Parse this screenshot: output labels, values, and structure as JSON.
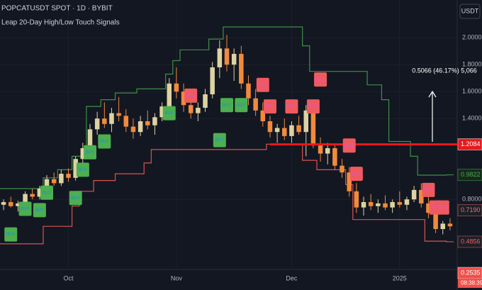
{
  "chart_data": {
    "type": "candlestick",
    "title": "POPCATUSDT SPOT · 1D · BYBIT",
    "subtitle": "Leap 20-Day High/Low Touch Signals",
    "currency": "USDT",
    "categories": [
      null,
      null,
      null,
      null,
      null,
      null,
      null,
      null,
      null,
      "Oct",
      null,
      null,
      null,
      null,
      null,
      null,
      null,
      null,
      null,
      null,
      null,
      null,
      null,
      null,
      "Nov",
      null,
      null,
      null,
      null,
      null,
      null,
      null,
      null,
      null,
      null,
      null,
      null,
      null,
      null,
      null,
      "Dec",
      null,
      null,
      null,
      null,
      null,
      null,
      null,
      null,
      null,
      null,
      null,
      null,
      null,
      null,
      "2025",
      null,
      null,
      null,
      null,
      null,
      null,
      null
    ],
    "ohlc": [
      [
        0.76,
        0.8,
        0.72,
        0.78
      ],
      [
        0.78,
        0.82,
        0.74,
        0.75
      ],
      [
        0.75,
        0.79,
        0.71,
        0.77
      ],
      [
        0.77,
        0.86,
        0.75,
        0.84
      ],
      [
        0.84,
        0.88,
        0.8,
        0.82
      ],
      [
        0.82,
        0.9,
        0.8,
        0.88
      ],
      [
        0.88,
        0.98,
        0.85,
        0.95
      ],
      [
        0.95,
        1.0,
        0.9,
        0.92
      ],
      [
        0.92,
        1.02,
        0.9,
        0.99
      ],
      [
        0.99,
        1.03,
        0.93,
        0.96
      ],
      [
        0.96,
        1.12,
        0.94,
        1.1
      ],
      [
        1.1,
        1.22,
        1.05,
        1.18
      ],
      [
        1.18,
        1.36,
        1.15,
        1.32
      ],
      [
        1.32,
        1.45,
        1.28,
        1.4
      ],
      [
        1.4,
        1.52,
        1.33,
        1.36
      ],
      [
        1.36,
        1.48,
        1.3,
        1.44
      ],
      [
        1.44,
        1.56,
        1.38,
        1.42
      ],
      [
        1.42,
        1.47,
        1.3,
        1.34
      ],
      [
        1.34,
        1.4,
        1.25,
        1.3
      ],
      [
        1.3,
        1.42,
        1.27,
        1.38
      ],
      [
        1.38,
        1.46,
        1.32,
        1.35
      ],
      [
        1.35,
        1.44,
        1.28,
        1.41
      ],
      [
        1.41,
        1.52,
        1.38,
        1.49
      ],
      [
        1.49,
        1.7,
        1.46,
        1.66
      ],
      [
        1.66,
        1.78,
        1.55,
        1.6
      ],
      [
        1.6,
        1.66,
        1.45,
        1.5
      ],
      [
        1.5,
        1.58,
        1.4,
        1.44
      ],
      [
        1.44,
        1.52,
        1.38,
        1.48
      ],
      [
        1.48,
        1.62,
        1.45,
        1.58
      ],
      [
        1.58,
        1.82,
        1.55,
        1.78
      ],
      [
        1.78,
        1.98,
        1.7,
        1.92
      ],
      [
        1.92,
        2.02,
        1.75,
        1.8
      ],
      [
        1.8,
        1.92,
        1.68,
        1.88
      ],
      [
        1.88,
        1.94,
        1.62,
        1.66
      ],
      [
        1.66,
        1.72,
        1.5,
        1.55
      ],
      [
        1.55,
        1.62,
        1.42,
        1.46
      ],
      [
        1.46,
        1.52,
        1.34,
        1.38
      ],
      [
        1.38,
        1.42,
        1.26,
        1.3
      ],
      [
        1.3,
        1.36,
        1.22,
        1.33
      ],
      [
        1.33,
        1.4,
        1.24,
        1.27
      ],
      [
        1.27,
        1.38,
        1.22,
        1.35
      ],
      [
        1.35,
        1.42,
        1.28,
        1.3
      ],
      [
        1.3,
        1.5,
        1.12,
        1.46
      ],
      [
        1.46,
        1.5,
        1.18,
        1.2
      ],
      [
        1.2,
        1.26,
        1.08,
        1.14
      ],
      [
        1.14,
        1.22,
        1.06,
        1.18
      ],
      [
        1.18,
        1.2,
        1.02,
        1.05
      ],
      [
        1.05,
        1.1,
        0.96,
        1.0
      ],
      [
        1.0,
        1.04,
        0.82,
        0.86
      ],
      [
        0.86,
        0.92,
        0.7,
        0.74
      ],
      [
        0.74,
        0.82,
        0.68,
        0.78
      ],
      [
        0.78,
        0.84,
        0.72,
        0.75
      ],
      [
        0.75,
        0.8,
        0.7,
        0.77
      ],
      [
        0.77,
        0.83,
        0.72,
        0.74
      ],
      [
        0.74,
        0.8,
        0.7,
        0.78
      ],
      [
        0.78,
        0.86,
        0.74,
        0.76
      ],
      [
        0.76,
        0.82,
        0.72,
        0.8
      ],
      [
        0.8,
        0.9,
        0.78,
        0.87
      ],
      [
        0.87,
        0.92,
        0.74,
        0.77
      ],
      [
        0.77,
        0.82,
        0.66,
        0.7
      ],
      [
        0.7,
        0.74,
        0.55,
        0.58
      ],
      [
        0.58,
        0.64,
        0.54,
        0.62
      ],
      [
        0.62,
        0.66,
        0.57,
        0.6
      ]
    ],
    "up_color": "#ddd3a2",
    "down_color": "#f28a3c",
    "series": [
      {
        "color": "#3f8f45",
        "values": [
          0.88,
          0.88,
          0.88,
          0.88,
          0.88,
          0.88,
          0.96,
          0.96,
          1.02,
          1.02,
          1.12,
          1.12,
          1.49,
          1.49,
          1.54,
          1.54,
          1.59,
          1.59,
          1.59,
          1.62,
          1.62,
          1.62,
          1.62,
          1.73,
          1.83,
          1.91,
          1.91,
          1.91,
          1.91,
          1.99,
          1.99,
          2.08,
          2.08,
          2.08,
          2.08,
          2.08,
          2.08,
          2.08,
          2.08,
          2.08,
          2.08,
          2.08,
          1.94,
          1.75,
          1.75,
          1.75,
          1.75,
          1.75,
          1.75,
          1.75,
          1.75,
          1.65,
          1.65,
          1.54,
          1.23,
          1.23,
          1.23,
          1.12,
          0.98,
          0.98,
          0.98,
          0.98,
          0.9822
        ]
      },
      {
        "color": "#d9534f",
        "values": [
          0.47,
          0.47,
          0.47,
          0.47,
          0.47,
          0.47,
          0.6,
          0.6,
          0.6,
          0.6,
          0.75,
          0.86,
          0.86,
          0.94,
          0.94,
          0.94,
          0.99,
          0.99,
          0.99,
          0.99,
          1.07,
          1.17,
          1.17,
          1.17,
          1.17,
          1.17,
          1.17,
          1.17,
          1.17,
          1.17,
          1.17,
          1.17,
          1.17,
          1.17,
          1.17,
          1.17,
          1.17,
          1.21,
          1.21,
          1.21,
          1.21,
          1.21,
          1.09,
          1.09,
          1.02,
          1.02,
          1.02,
          1.02,
          0.91,
          0.65,
          0.65,
          0.65,
          0.65,
          0.65,
          0.65,
          0.65,
          0.65,
          0.65,
          0.65,
          0.49,
          0.49,
          0.49,
          0.4856
        ]
      }
    ],
    "signals": [
      {
        "label": "BUY",
        "x": 1,
        "y": 0.54
      },
      {
        "label": "BUY",
        "x": 3,
        "y": 0.73
      },
      {
        "label": "BUY",
        "x": 5,
        "y": 0.72
      },
      {
        "label": "BUY",
        "x": 6,
        "y": 0.85
      },
      {
        "label": "BUY",
        "x": 10,
        "y": 0.81
      },
      {
        "label": "BUY",
        "x": 11,
        "y": 1.02
      },
      {
        "label": "BUY",
        "x": 12,
        "y": 1.15
      },
      {
        "label": "BUY",
        "x": 14,
        "y": 1.23
      },
      {
        "label": "BUY",
        "x": 23,
        "y": 1.44
      },
      {
        "label": "BUY",
        "x": 30,
        "y": 1.24
      },
      {
        "label": "BUY",
        "x": 31,
        "y": 1.5
      },
      {
        "label": "BUY",
        "x": 33,
        "y": 1.5
      },
      {
        "label": "SELL",
        "x": 26,
        "y": 1.57
      },
      {
        "label": "SELL",
        "x": 36,
        "y": 1.65
      },
      {
        "label": "SELL",
        "x": 37,
        "y": 1.49
      },
      {
        "label": "SELL",
        "x": 40,
        "y": 1.49
      },
      {
        "label": "SELL",
        "x": 43,
        "y": 1.49
      },
      {
        "label": "SELL",
        "x": 44,
        "y": 1.69
      },
      {
        "label": "SELL",
        "x": 48,
        "y": 1.2
      },
      {
        "label": "SELL",
        "x": 49,
        "y": 0.99
      },
      {
        "label": "SELL",
        "x": 59,
        "y": 0.87
      },
      {
        "label": "SELL",
        "x": 60,
        "y": 0.74
      },
      {
        "label": "SELL",
        "x": 61,
        "y": 0.74
      }
    ],
    "hline": {
      "value": 1.2084,
      "color": "#e8191b"
    },
    "measure_label": "0.5066 (46.17%) 5,066",
    "ylim": [
      0.28,
      2.28
    ],
    "yticks": [
      {
        "value": 2,
        "label": "2.0000"
      },
      {
        "value": 1.8,
        "label": "1.8000"
      },
      {
        "value": 1.6,
        "label": "1.6000"
      },
      {
        "value": 1.4,
        "label": "1.4000"
      },
      {
        "value": 0.8,
        "label": "0.8000"
      }
    ],
    "price_tags": [
      {
        "value": 1.2084,
        "color": "#e8191b",
        "text_color": "#ffffff"
      },
      {
        "value": 0.9822,
        "color": "#16291c",
        "text_color": "#4caf50"
      },
      {
        "value": 0.719,
        "label": "0.7190",
        "color": "#1d1f27",
        "text_color": "#f07070"
      },
      {
        "value": 0.4856,
        "color": "#1d1f27",
        "text_color": "#f06060"
      },
      {
        "value": 0.2535,
        "color": "#f0504a",
        "text_color": "#ffffff"
      }
    ],
    "countdown": "08:38:39",
    "grid": true
  }
}
